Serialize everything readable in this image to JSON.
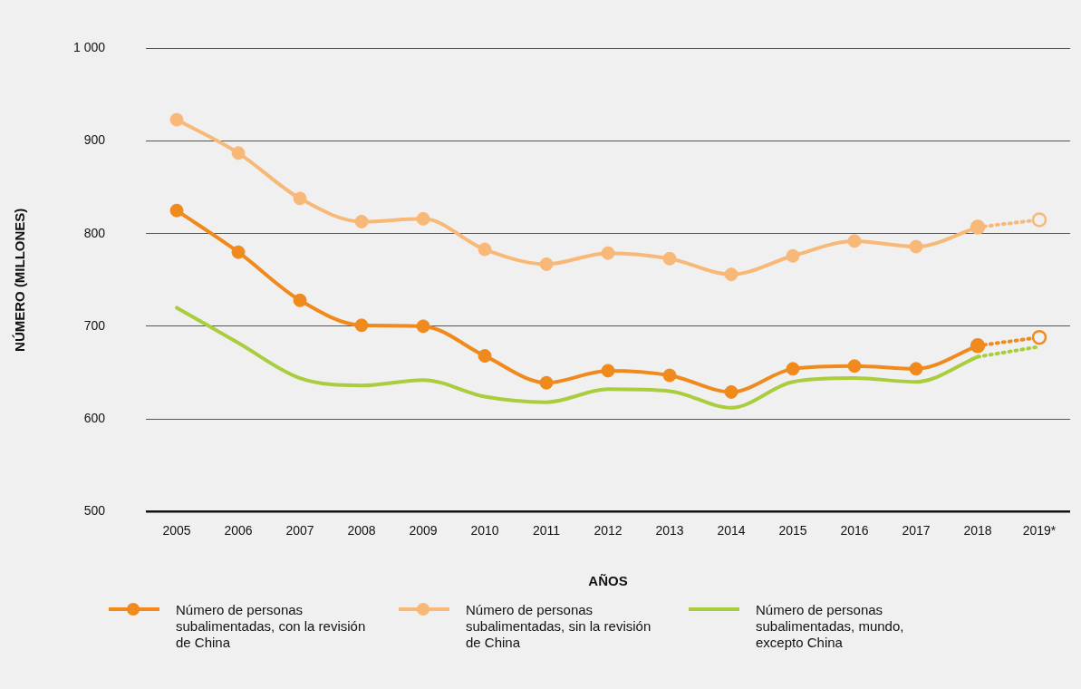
{
  "chart_data": {
    "type": "line",
    "xlabel": "AÑOS",
    "ylabel": "NÚMERO (MILLONES)",
    "categories": [
      "2005",
      "2006",
      "2007",
      "2008",
      "2009",
      "2010",
      "2011",
      "2012",
      "2013",
      "2014",
      "2015",
      "2016",
      "2017",
      "2018",
      "2019*"
    ],
    "ylim": [
      500,
      1000
    ],
    "yticks": [
      {
        "value": 500,
        "label": "500"
      },
      {
        "value": 600,
        "label": "600"
      },
      {
        "value": 700,
        "label": "700"
      },
      {
        "value": 800,
        "label": "800"
      },
      {
        "value": 900,
        "label": "900"
      },
      {
        "value": 1000,
        "label": "1 000"
      }
    ],
    "grid": "y",
    "legend": "bottom",
    "series": [
      {
        "name": "Número de personas subalimentadas, con la revisión de China",
        "color": "#f08a1c",
        "marker": "circle",
        "line_style": "solid",
        "values": [
          825,
          780,
          728,
          701,
          700,
          668,
          639,
          652,
          647,
          629,
          654,
          657,
          654,
          679,
          null
        ]
      },
      {
        "name": "Número de personas subalimentadas, sin la revisión de China",
        "color": "#f8b877",
        "marker": "circle",
        "line_style": "solid",
        "values": [
          923,
          887,
          838,
          813,
          816,
          783,
          767,
          779,
          773,
          756,
          776,
          792,
          786,
          807,
          null
        ]
      },
      {
        "name": "Número de personas subalimentadas, mundo, excepto China",
        "color": "#a9cd3c",
        "marker": "none",
        "line_style": "solid",
        "values": [
          720,
          682,
          644,
          636,
          642,
          624,
          618,
          632,
          630,
          612,
          640,
          644,
          640,
          667,
          null
        ]
      },
      {
        "color": "#f08a1c",
        "marker": "circle",
        "line_style": "dotted",
        "values": [
          null,
          null,
          null,
          null,
          null,
          null,
          null,
          null,
          null,
          null,
          null,
          null,
          null,
          679,
          688
        ]
      },
      {
        "color": "#f8b877",
        "marker": "circle",
        "line_style": "dotted",
        "values": [
          null,
          null,
          null,
          null,
          null,
          null,
          null,
          null,
          null,
          null,
          null,
          null,
          null,
          807,
          815
        ]
      },
      {
        "color": "#a9cd3c",
        "marker": "none",
        "line_style": "dotted",
        "values": [
          null,
          null,
          null,
          null,
          null,
          null,
          null,
          null,
          null,
          null,
          null,
          null,
          null,
          667,
          678
        ]
      }
    ]
  }
}
